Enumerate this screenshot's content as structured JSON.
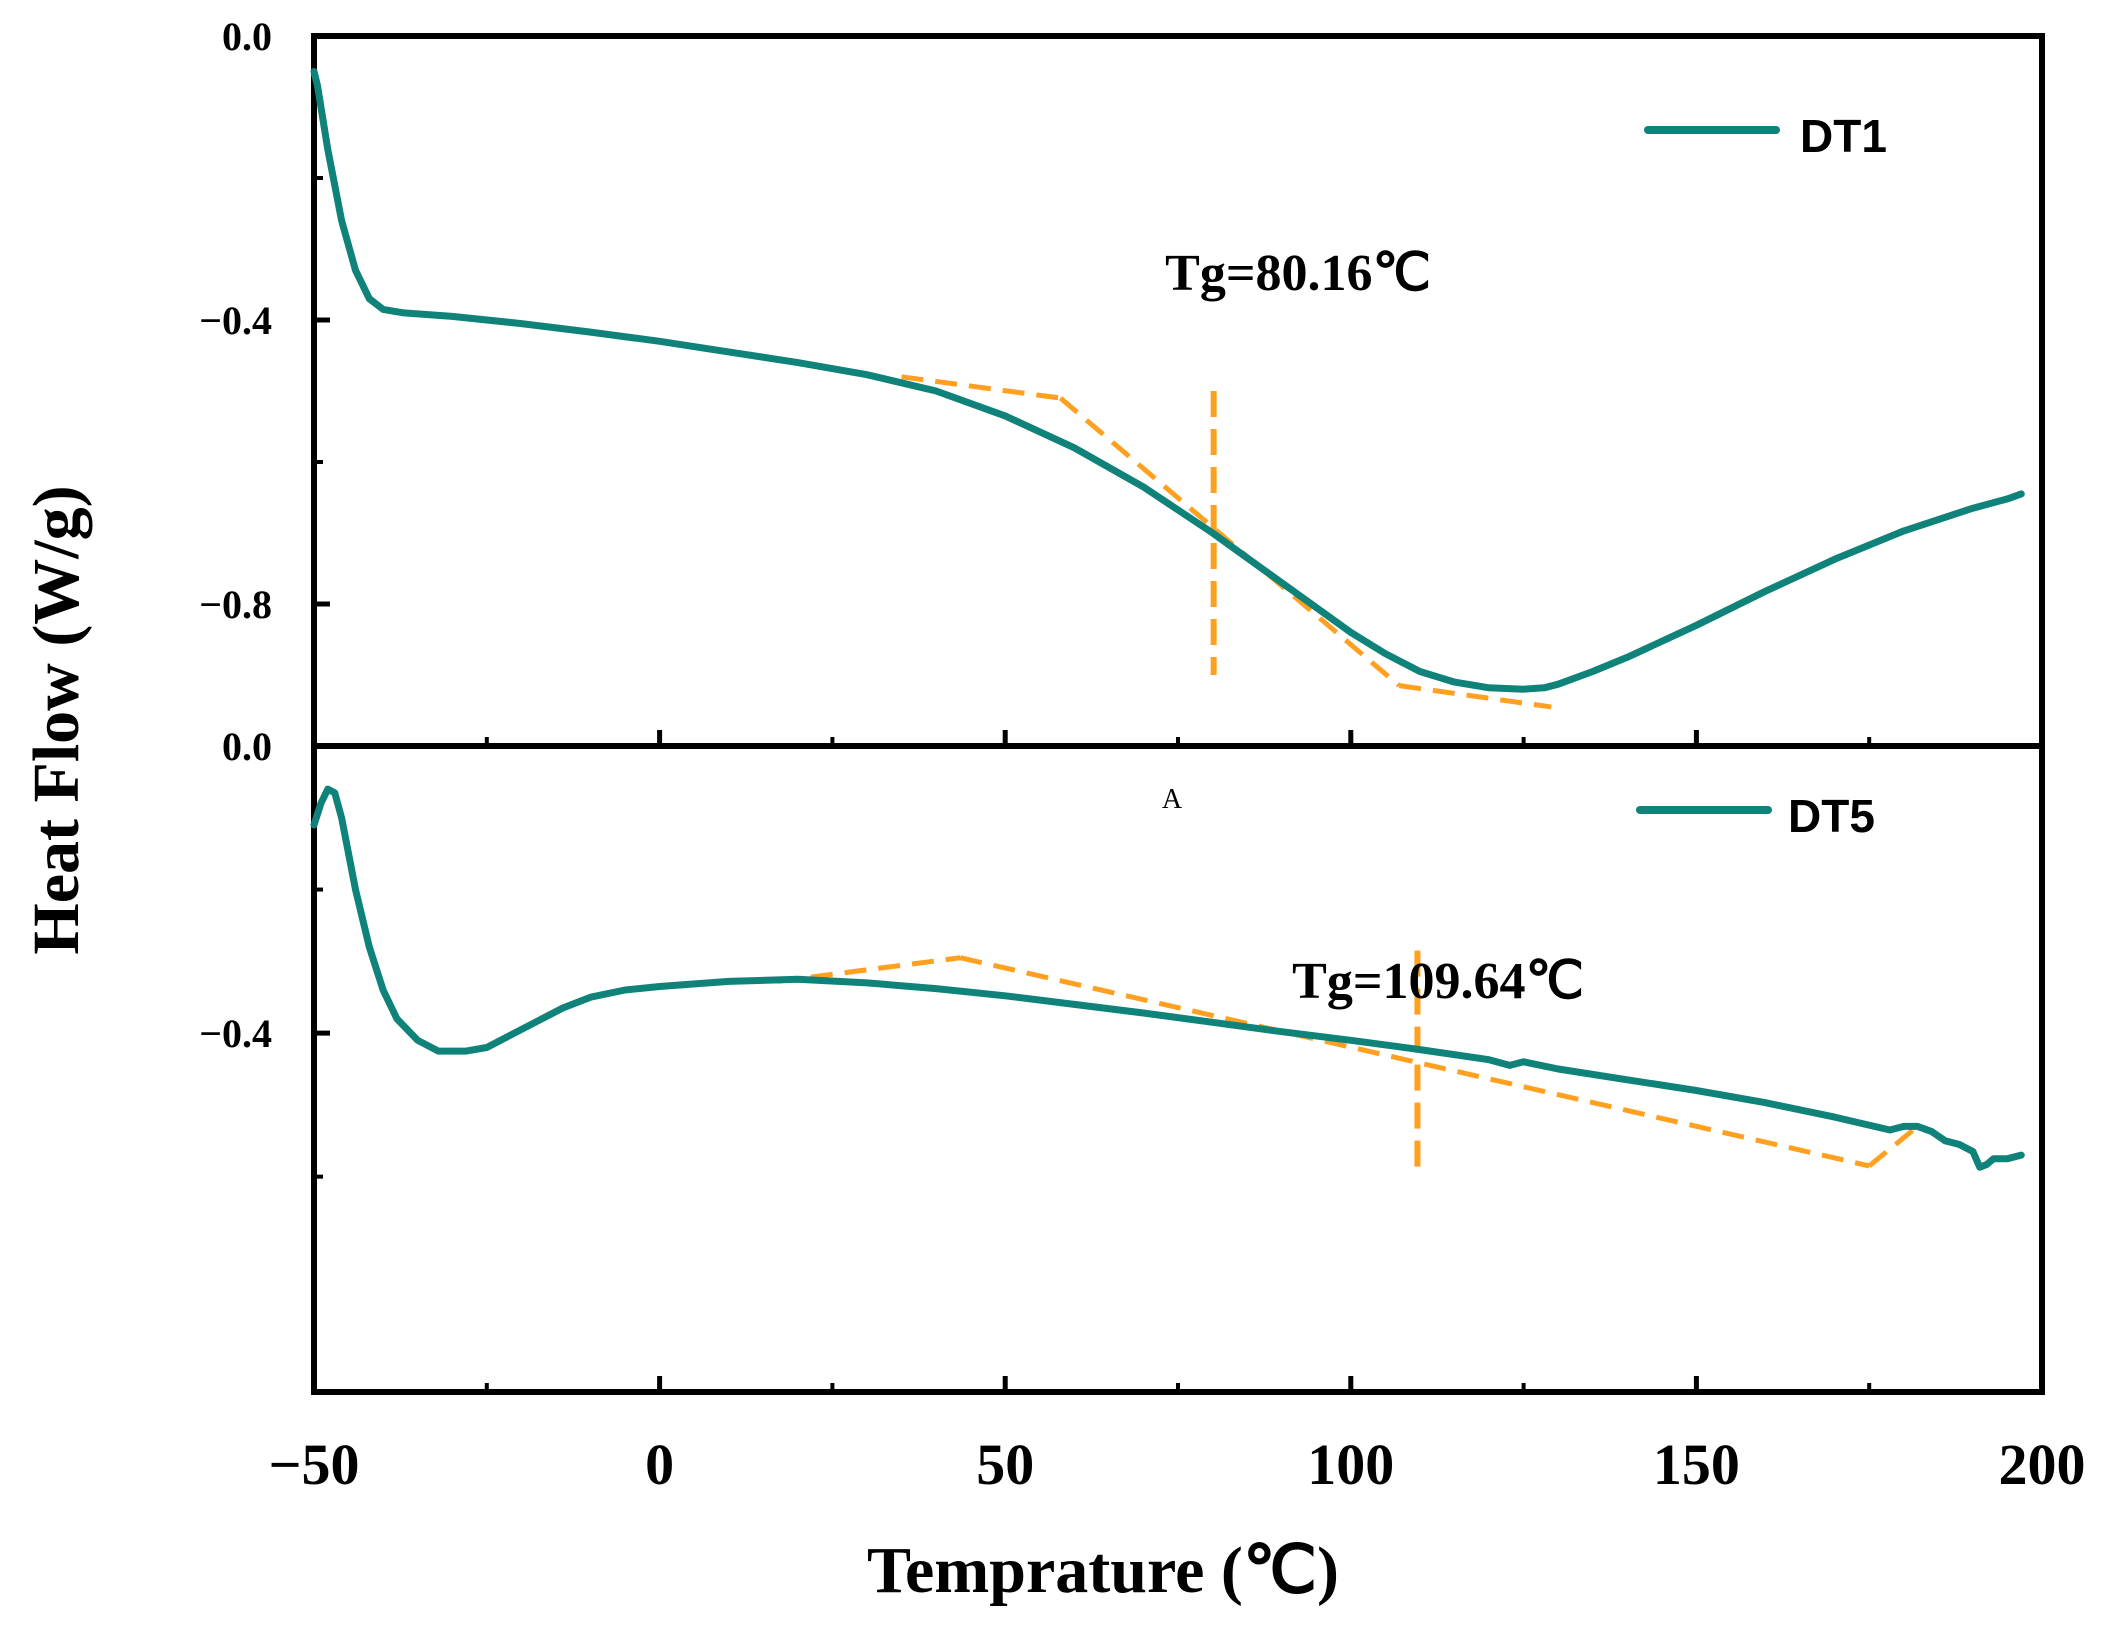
{
  "chart_data": [
    {
      "type": "line",
      "panel": "top",
      "xlim": [
        -50,
        200
      ],
      "ylim": [
        -1.0,
        0.0
      ],
      "ytick_values": [
        0.0,
        -0.4,
        -0.8
      ],
      "ytick_labels": [
        "0.0",
        "−0.4",
        "−0.8"
      ],
      "series": [
        {
          "name": "DT1",
          "color": "#0f837a",
          "x": [
            -50,
            -49.5,
            -48,
            -46,
            -44,
            -42,
            -40,
            -37,
            -30,
            -20,
            -10,
            0,
            10,
            20,
            30,
            40,
            50,
            60,
            70,
            80,
            90,
            100,
            105,
            110,
            115,
            120,
            125,
            128,
            130,
            135,
            140,
            150,
            160,
            170,
            180,
            190,
            195,
            197
          ],
          "y": [
            -0.05,
            -0.07,
            -0.16,
            -0.26,
            -0.33,
            -0.37,
            -0.385,
            -0.39,
            -0.395,
            -0.405,
            -0.417,
            -0.43,
            -0.445,
            -0.46,
            -0.477,
            -0.5,
            -0.535,
            -0.58,
            -0.635,
            -0.7,
            -0.77,
            -0.84,
            -0.87,
            -0.895,
            -0.91,
            -0.918,
            -0.92,
            -0.918,
            -0.913,
            -0.895,
            -0.875,
            -0.83,
            -0.782,
            -0.737,
            -0.697,
            -0.665,
            -0.652,
            -0.645
          ]
        }
      ],
      "tangent_lines": [
        {
          "x": [
            35,
            58
          ],
          "y": [
            -0.48,
            -0.51
          ]
        },
        {
          "x": [
            58,
            107
          ],
          "y": [
            -0.51,
            -0.915
          ]
        },
        {
          "x": [
            107,
            129
          ],
          "y": [
            -0.915,
            -0.945
          ]
        }
      ],
      "tg_marker": {
        "x": 80.16,
        "y_range": [
          -0.5,
          -0.9
        ]
      },
      "annotation": "Tg=80.16℃",
      "legend": {
        "label": "DT1",
        "position": "top-right"
      }
    },
    {
      "type": "line",
      "panel": "bottom",
      "xlim": [
        -50,
        200
      ],
      "ylim": [
        -0.9,
        0.0
      ],
      "ytick_values": [
        0.0,
        -0.4
      ],
      "ytick_labels": [
        "0.0",
        "−0.4"
      ],
      "series": [
        {
          "name": "DT5",
          "color": "#0f837a",
          "x": [
            -50,
            -49,
            -48,
            -47,
            -46,
            -44,
            -42,
            -40,
            -38,
            -35,
            -32,
            -28,
            -25,
            -22,
            -18,
            -14,
            -10,
            -5,
            0,
            10,
            20,
            30,
            40,
            50,
            60,
            70,
            80,
            90,
            100,
            110,
            120,
            123,
            125,
            130,
            140,
            150,
            160,
            170,
            178,
            180,
            182,
            184,
            186,
            188,
            190,
            191,
            192,
            193,
            195,
            197
          ],
          "y": [
            -0.11,
            -0.08,
            -0.06,
            -0.065,
            -0.1,
            -0.2,
            -0.28,
            -0.34,
            -0.38,
            -0.41,
            -0.425,
            -0.425,
            -0.42,
            -0.405,
            -0.385,
            -0.365,
            -0.35,
            -0.34,
            -0.335,
            -0.328,
            -0.325,
            -0.33,
            -0.338,
            -0.348,
            -0.36,
            -0.372,
            -0.385,
            -0.398,
            -0.41,
            -0.423,
            -0.437,
            -0.445,
            -0.44,
            -0.45,
            -0.465,
            -0.48,
            -0.497,
            -0.517,
            -0.535,
            -0.53,
            -0.53,
            -0.537,
            -0.55,
            -0.555,
            -0.565,
            -0.587,
            -0.583,
            -0.575,
            -0.575,
            -0.57
          ]
        }
      ],
      "tangent_lines": [
        {
          "x": [
            17,
            43.5
          ],
          "y": [
            -0.328,
            -0.295
          ]
        },
        {
          "x": [
            43.5,
            175
          ],
          "y": [
            -0.295,
            -0.585
          ]
        },
        {
          "x": [
            175,
            182
          ],
          "y": [
            -0.585,
            -0.53
          ]
        }
      ],
      "tg_marker": {
        "x": 109.64,
        "y_range": [
          -0.285,
          -0.59
        ]
      },
      "annotation": "Tg=109.64℃",
      "legend": {
        "label": "DT5",
        "position": "top-right"
      }
    }
  ],
  "axes": {
    "x_ticks": [
      -50,
      0,
      50,
      100,
      150,
      200
    ],
    "x_tick_labels": [
      "−50",
      "0",
      "50",
      "100",
      "150",
      "200"
    ],
    "xlabel": "Temprature (℃)",
    "ylabel": "Heat Flow (W/g)",
    "panel_mark": "A"
  },
  "colors": {
    "curve": "#0f837a",
    "tangent": "#ffa020",
    "axis": "#000000"
  }
}
